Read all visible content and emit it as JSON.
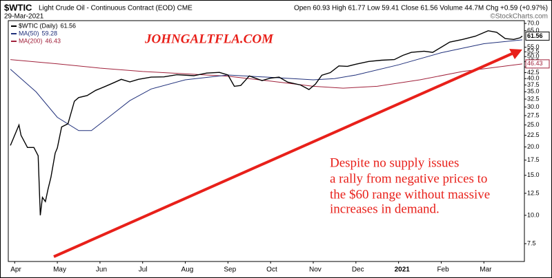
{
  "chart_data": {
    "type": "line",
    "title": "$WTIC",
    "subtitle": "Light Crude Oil - Continuous Contract (EOD) CME",
    "date": "29-Mar-2021",
    "quote": "Open 60.93 High 61.77 Low 59.41 Close 61.56 Volume 44.7M Chg +0.59 (+0.97%)",
    "source": "©StockCharts.com",
    "annotations": [
      "JOHNGALTFLA.COM",
      "Despite no supply issues",
      "a rally from negative prices to",
      "the $60 range without massive",
      "increases in demand."
    ],
    "log_scale": true,
    "grid": false,
    "legend": "upper left",
    "xlim": [
      -0.15,
      11.95
    ],
    "ylim": [
      6.26,
      72
    ],
    "xticks": [
      {
        "value": 0,
        "label": "Apr"
      },
      {
        "value": 1,
        "label": "May"
      },
      {
        "value": 2,
        "label": "Jun"
      },
      {
        "value": 3,
        "label": "Jul"
      },
      {
        "value": 4,
        "label": "Aug"
      },
      {
        "value": 5,
        "label": "Sep"
      },
      {
        "value": 6,
        "label": "Oct"
      },
      {
        "value": 7,
        "label": "Nov"
      },
      {
        "value": 8,
        "label": "Dec"
      },
      {
        "value": 9,
        "label": "2021"
      },
      {
        "value": 10,
        "label": "Feb"
      },
      {
        "value": 11,
        "label": "Mar"
      }
    ],
    "yticks": [
      {
        "value": 70,
        "label": "70.0"
      },
      {
        "value": 65,
        "label": "65.0"
      },
      {
        "value": 55,
        "label": "55.0"
      },
      {
        "value": 52.5,
        "label": "52.5"
      },
      {
        "value": 50,
        "label": "50.0"
      },
      {
        "value": 47.5,
        "label": "47.5"
      },
      {
        "value": 45,
        "label": "45.0"
      },
      {
        "value": 42.5,
        "label": "42.5"
      },
      {
        "value": 40,
        "label": "40.0"
      },
      {
        "value": 37.5,
        "label": "37.5"
      },
      {
        "value": 35,
        "label": "35.0"
      },
      {
        "value": 32.5,
        "label": "32.5"
      },
      {
        "value": 30,
        "label": "30.0"
      },
      {
        "value": 27.5,
        "label": "27.5"
      },
      {
        "value": 25,
        "label": "25.0"
      },
      {
        "value": 22.5,
        "label": "22.5"
      },
      {
        "value": 20,
        "label": "20.0"
      },
      {
        "value": 17.5,
        "label": "17.5"
      },
      {
        "value": 15,
        "label": "15.0"
      },
      {
        "value": 12.5,
        "label": "12.5"
      },
      {
        "value": 10,
        "label": "10.0"
      },
      {
        "value": 7.5,
        "label": "7.5"
      }
    ],
    "series": [
      {
        "name": "$WTIC (Daily)",
        "color": "#000000",
        "x": [
          -0.1,
          0.1,
          0.15,
          0.3,
          0.45,
          0.55,
          0.6,
          0.65,
          0.72,
          0.78,
          0.85,
          0.95,
          1.0,
          1.1,
          1.25,
          1.4,
          1.5,
          1.7,
          1.9,
          2.1,
          2.3,
          2.5,
          2.7,
          2.9,
          3.2,
          3.5,
          3.8,
          4.2,
          4.5,
          4.8,
          5.0,
          5.15,
          5.3,
          5.5,
          5.8,
          6.0,
          6.2,
          6.4,
          6.7,
          6.9,
          7.05,
          7.2,
          7.4,
          7.6,
          7.8,
          8.0,
          8.3,
          8.6,
          8.9,
          9.1,
          9.3,
          9.6,
          9.8,
          10.0,
          10.2,
          10.5,
          10.8,
          11.1,
          11.3,
          11.5,
          11.7,
          11.85,
          11.9
        ],
        "values": [
          20.3,
          25,
          22.5,
          19.9,
          19.9,
          18.3,
          10,
          12,
          11.5,
          13,
          14.7,
          18.8,
          19.8,
          24.5,
          25.3,
          31.8,
          33,
          33.7,
          35.5,
          36.8,
          38.2,
          39.7,
          38.7,
          39.7,
          40.6,
          40.7,
          41.6,
          41.2,
          42.3,
          42.6,
          41.5,
          37,
          37.3,
          41.1,
          39.2,
          40.2,
          40.6,
          38.6,
          37.5,
          35.8,
          37.8,
          41.4,
          42.5,
          45.5,
          45.3,
          46.3,
          47.6,
          48.2,
          48.5,
          50.6,
          52.2,
          52.8,
          52.2,
          55,
          57.9,
          59.5,
          61.5,
          65,
          64,
          60,
          59.5,
          60.5,
          61.56
        ]
      },
      {
        "name": "MA(50)",
        "color": "#1f2f7a",
        "x": [
          -0.1,
          0.5,
          1.0,
          1.5,
          1.8,
          2.2,
          2.7,
          3.2,
          4,
          5,
          6,
          7,
          7.5,
          8,
          9,
          10,
          11,
          11.9
        ],
        "values": [
          44,
          35,
          27,
          23.6,
          23.6,
          27,
          32,
          36,
          39.5,
          41.5,
          40.5,
          39.5,
          40,
          41.5,
          46,
          52,
          57,
          59.28
        ]
      },
      {
        "name": "MA(200)",
        "color": "#a0203a",
        "x": [
          -0.1,
          1,
          2,
          3,
          4,
          5,
          6,
          7,
          7.7,
          8.5,
          9.5,
          10.5,
          11.9
        ],
        "values": [
          48.5,
          46.5,
          44.5,
          43,
          42,
          41,
          39,
          37,
          36.3,
          37,
          39.5,
          43,
          46.43
        ]
      }
    ]
  }
}
